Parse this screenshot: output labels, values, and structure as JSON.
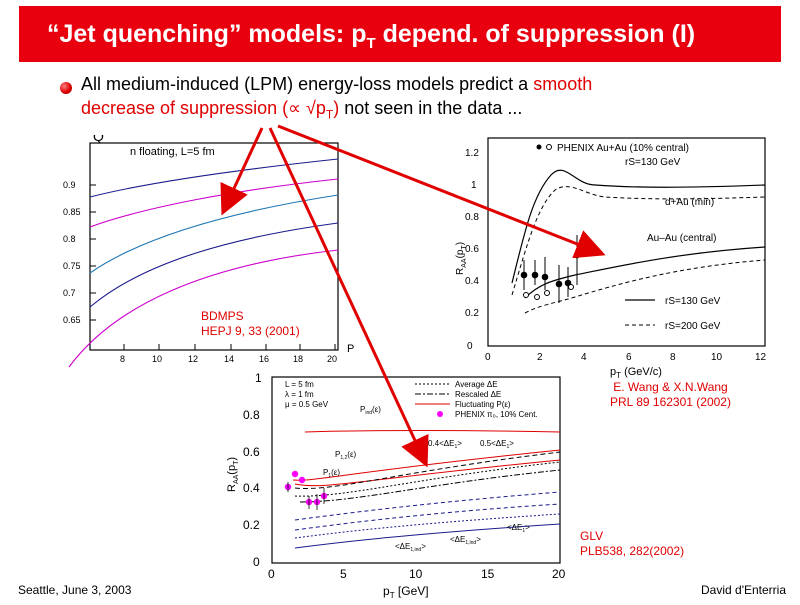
{
  "header": {
    "title_part1": "“Jet quenching” models: p",
    "title_sub": "T",
    "title_part2": " depend. of suppression (I)"
  },
  "bullet": {
    "line1_black": "All medium-induced (LPM) energy-loss models predict a ",
    "line1_red": "smooth",
    "line2_red": "decrease of suppression (∝ √p",
    "line2_sub": "T",
    "line2_red_end": ")",
    "line2_black": " not seen in the data ..."
  },
  "left_plot": {
    "header_text": "n floating, L=5 fm",
    "y_ticks": [
      "0.9",
      "0.85",
      "0.8",
      "0.75",
      "0.7",
      "0.65"
    ],
    "x_ticks": [
      "8",
      "10",
      "12",
      "14",
      "16",
      "18",
      "20"
    ],
    "x_axis_label": "P",
    "label_line1": "BDMPS",
    "label_line2": "HEPJ 9, 33 (2001)"
  },
  "right_plot": {
    "legend_phenix": "PHENIX Au+Au (10% central)",
    "legend_rs130": "rS=130 GeV",
    "legend_dau": "d+Au (min)",
    "legend_auau": "Au–Au (central)",
    "legend_line1": "rS=130 GeV",
    "legend_line2": "rS=200 GeV",
    "y_axis_label": "R",
    "x_axis_label": "p",
    "x_axis_unit": " (GeV/c)",
    "y_ticks": [
      "0",
      "0.2",
      "0.4",
      "0.6",
      "0.8",
      "1",
      "1.2"
    ],
    "x_ticks": [
      "0",
      "2",
      "4",
      "6",
      "8",
      "10",
      "12"
    ],
    "ref_line1": "E. Wang & X.N.Wang",
    "ref_line2": "PRL 89 162301 (2002)"
  },
  "bottom_plot": {
    "y_ticks": [
      "0",
      "0.2",
      "0.4",
      "0.6",
      "0.8",
      "1"
    ],
    "x_ticks": [
      "0",
      "5",
      "10",
      "15",
      "20"
    ],
    "y_axis_label": "R",
    "x_axis_label": "p",
    "x_axis_unit": " [GeV]",
    "legend_L": "L = 5 fm",
    "legend_lambda": "λ = 1 fm",
    "legend_mu": "μ = 0.5 GeV",
    "legend_avg": "Average ΔE",
    "legend_rescaled": "Rescaled ΔE",
    "legend_fluct": "Fluctuating P(ε)",
    "legend_phenix": "PHENIX π₀, 10% Cent.",
    "label_p_ind": "P",
    "label_p_ind_arg": "(ε)",
    "label_p_1": "P",
    "label_p_1_arg": "(ε)",
    "label_p_total": "P",
    "label_p_total_arg": "(ε)",
    "label_04": "0.4<ΔE",
    "label_05": "0.5<ΔE",
    "label_de": "<ΔE",
    "label_de_low": "<ΔE",
    "label_de_mid": "<ΔE",
    "ref_line1": "GLV",
    "ref_line2": "PLB538, 282(2002)"
  },
  "footer": {
    "left": "Seattle, June  3, 2003",
    "right": "David d'Enterria"
  },
  "colors": {
    "accent_red": "#e00000",
    "title_bar": "#e8000e",
    "curve_navy": "#1a1a8c",
    "curve_purple": "#cc00cc",
    "curve_blue": "#1f77b4",
    "data_magenta": "#ff00ff"
  }
}
